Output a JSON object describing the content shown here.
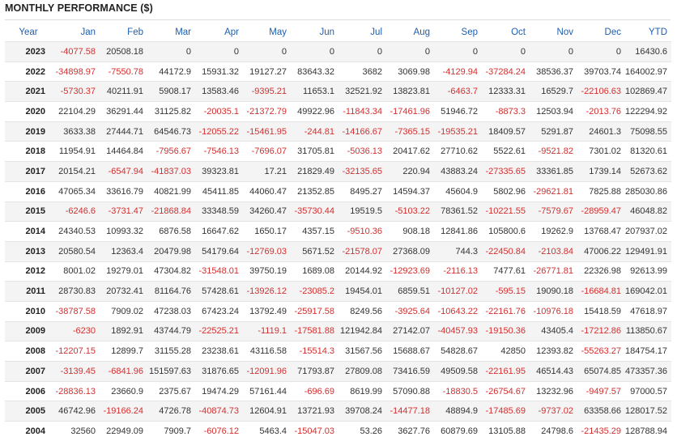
{
  "title": "MONTHLY PERFORMANCE ($)",
  "colors": {
    "header": "#1f5fae",
    "negative": "#d32f2f",
    "stripe": "#f4f4f4"
  },
  "columns": [
    "Year",
    "Jan",
    "Feb",
    "Mar",
    "Apr",
    "May",
    "Jun",
    "Jul",
    "Aug",
    "Sep",
    "Oct",
    "Nov",
    "Dec",
    "YTD"
  ],
  "rows": [
    [
      "2023",
      "-4077.58",
      "20508.18",
      "0",
      "0",
      "0",
      "0",
      "0",
      "0",
      "0",
      "0",
      "0",
      "0",
      "16430.6"
    ],
    [
      "2022",
      "-34898.97",
      "-7550.78",
      "44172.9",
      "15931.32",
      "19127.27",
      "83643.32",
      "3682",
      "3069.98",
      "-4129.94",
      "-37284.24",
      "38536.37",
      "39703.74",
      "164002.97"
    ],
    [
      "2021",
      "-5730.37",
      "40211.91",
      "5908.17",
      "13583.46",
      "-9395.21",
      "11653.1",
      "32521.92",
      "13823.81",
      "-6463.7",
      "12333.31",
      "16529.7",
      "-22106.63",
      "102869.47"
    ],
    [
      "2020",
      "22104.29",
      "36291.44",
      "31125.82",
      "-20035.1",
      "-21372.79",
      "49922.96",
      "-11843.34",
      "-17461.96",
      "51946.72",
      "-8873.3",
      "12503.94",
      "-2013.76",
      "122294.92"
    ],
    [
      "2019",
      "3633.38",
      "27444.71",
      "64546.73",
      "-12055.22",
      "-15461.95",
      "-244.81",
      "-14166.67",
      "-7365.15",
      "-19535.21",
      "18409.57",
      "5291.87",
      "24601.3",
      "75098.55"
    ],
    [
      "2018",
      "11954.91",
      "14464.84",
      "-7956.67",
      "-7546.13",
      "-7696.07",
      "31705.81",
      "-5036.13",
      "20417.62",
      "27710.62",
      "5522.61",
      "-9521.82",
      "7301.02",
      "81320.61"
    ],
    [
      "2017",
      "20154.21",
      "-6547.94",
      "-41837.03",
      "39323.81",
      "17.21",
      "21829.49",
      "-32135.65",
      "220.94",
      "43883.24",
      "-27335.65",
      "33361.85",
      "1739.14",
      "52673.62"
    ],
    [
      "2016",
      "47065.34",
      "33616.79",
      "40821.99",
      "45411.85",
      "44060.47",
      "21352.85",
      "8495.27",
      "14594.37",
      "45604.9",
      "5802.96",
      "-29621.81",
      "7825.88",
      "285030.86"
    ],
    [
      "2015",
      "-6246.6",
      "-3731.47",
      "-21868.84",
      "33348.59",
      "34260.47",
      "-35730.44",
      "19519.5",
      "-5103.22",
      "78361.52",
      "-10221.55",
      "-7579.67",
      "-28959.47",
      "46048.82"
    ],
    [
      "2014",
      "24340.53",
      "10993.32",
      "6876.58",
      "16647.62",
      "1650.17",
      "4357.15",
      "-9510.36",
      "908.18",
      "12841.86",
      "105800.6",
      "19262.9",
      "13768.47",
      "207937.02"
    ],
    [
      "2013",
      "20580.54",
      "12363.4",
      "20479.98",
      "54179.64",
      "-12769.03",
      "5671.52",
      "-21578.07",
      "27368.09",
      "744.3",
      "-22450.84",
      "-2103.84",
      "47006.22",
      "129491.91"
    ],
    [
      "2012",
      "8001.02",
      "19279.01",
      "47304.82",
      "-31548.01",
      "39750.19",
      "1689.08",
      "20144.92",
      "-12923.69",
      "-2116.13",
      "7477.61",
      "-26771.81",
      "22326.98",
      "92613.99"
    ],
    [
      "2011",
      "28730.83",
      "20732.41",
      "81164.76",
      "57428.61",
      "-13926.12",
      "-23085.2",
      "19454.01",
      "6859.51",
      "-10127.02",
      "-595.15",
      "19090.18",
      "-16684.81",
      "169042.01"
    ],
    [
      "2010",
      "-38787.58",
      "7909.02",
      "47238.03",
      "67423.24",
      "13792.49",
      "-25917.58",
      "8249.56",
      "-3925.64",
      "-10643.22",
      "-22161.76",
      "-10976.18",
      "15418.59",
      "47618.97"
    ],
    [
      "2009",
      "-6230",
      "1892.91",
      "43744.79",
      "-22525.21",
      "-1119.1",
      "-17581.88",
      "121942.84",
      "27142.07",
      "-40457.93",
      "-19150.36",
      "43405.4",
      "-17212.86",
      "113850.67"
    ],
    [
      "2008",
      "-12207.15",
      "12899.7",
      "31155.28",
      "23238.61",
      "43116.58",
      "-15514.3",
      "31567.56",
      "15688.67",
      "54828.67",
      "42850",
      "12393.82",
      "-55263.27",
      "184754.17"
    ],
    [
      "2007",
      "-3139.45",
      "-6841.96",
      "151597.63",
      "31876.65",
      "-12091.96",
      "71793.87",
      "27809.08",
      "73416.59",
      "49509.58",
      "-22161.95",
      "46514.43",
      "65074.85",
      "473357.36"
    ],
    [
      "2006",
      "-28836.13",
      "23660.9",
      "2375.67",
      "19474.29",
      "57161.44",
      "-696.69",
      "8619.99",
      "57090.88",
      "-18830.5",
      "-26754.67",
      "13232.96",
      "-9497.57",
      "97000.57"
    ],
    [
      "2005",
      "46742.96",
      "-19166.24",
      "4726.78",
      "-40874.73",
      "12604.91",
      "13721.93",
      "39708.24",
      "-14477.18",
      "48894.9",
      "-17485.69",
      "-9737.02",
      "63358.66",
      "128017.52"
    ],
    [
      "2004",
      "32560",
      "22949.09",
      "7909.7",
      "-6076.12",
      "5463.4",
      "-15047.03",
      "53.26",
      "3627.76",
      "60879.69",
      "13105.88",
      "24798.6",
      "-21435.29",
      "128788.94"
    ]
  ]
}
